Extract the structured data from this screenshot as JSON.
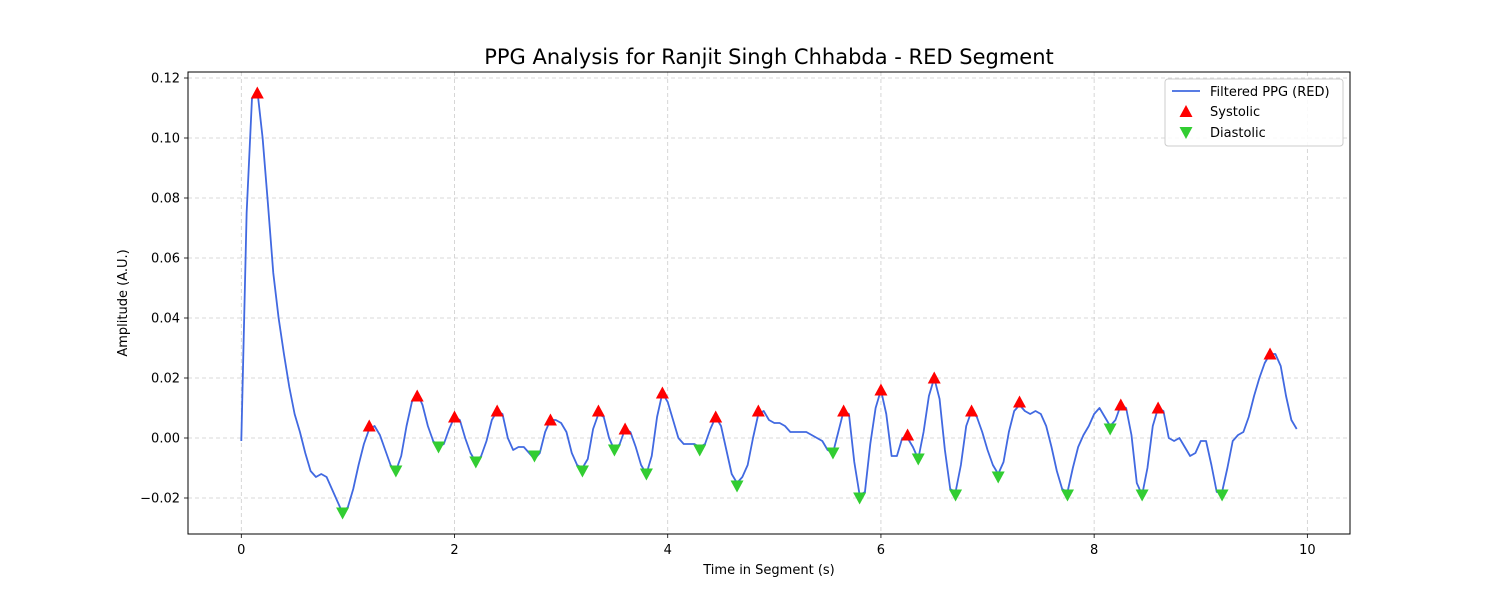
{
  "chart_data": {
    "type": "line",
    "title": "PPG Analysis for Ranjit Singh Chhabda - RED Segment",
    "xlabel": "Time in Segment (s)",
    "ylabel": "Amplitude (A.U.)",
    "xlim": [
      -0.5,
      10.4
    ],
    "ylim": [
      -0.032,
      0.122
    ],
    "xticks": [
      "0",
      "2",
      "4",
      "6",
      "8",
      "10"
    ],
    "yticks": [
      "−0.02",
      "0.00",
      "0.02",
      "0.04",
      "0.06",
      "0.08",
      "0.10",
      "0.12"
    ],
    "grid": true,
    "legend_position": "top-right",
    "series": [
      {
        "name": "Filtered PPG (RED)",
        "kind": "line",
        "color": "#4169E1",
        "points": [
          [
            0.0,
            -0.001
          ],
          [
            0.05,
            0.075
          ],
          [
            0.1,
            0.113
          ],
          [
            0.15,
            0.116
          ],
          [
            0.2,
            0.1
          ],
          [
            0.25,
            0.078
          ],
          [
            0.3,
            0.055
          ],
          [
            0.35,
            0.04
          ],
          [
            0.4,
            0.028
          ],
          [
            0.45,
            0.017
          ],
          [
            0.5,
            0.008
          ],
          [
            0.55,
            0.002
          ],
          [
            0.6,
            -0.005
          ],
          [
            0.65,
            -0.011
          ],
          [
            0.7,
            -0.013
          ],
          [
            0.75,
            -0.012
          ],
          [
            0.8,
            -0.013
          ],
          [
            0.85,
            -0.017
          ],
          [
            0.9,
            -0.021
          ],
          [
            0.95,
            -0.025
          ],
          [
            1.0,
            -0.023
          ],
          [
            1.05,
            -0.017
          ],
          [
            1.1,
            -0.009
          ],
          [
            1.15,
            -0.002
          ],
          [
            1.2,
            0.003
          ],
          [
            1.25,
            0.004
          ],
          [
            1.3,
            0.001
          ],
          [
            1.35,
            -0.004
          ],
          [
            1.4,
            -0.009
          ],
          [
            1.45,
            -0.011
          ],
          [
            1.5,
            -0.006
          ],
          [
            1.55,
            0.004
          ],
          [
            1.6,
            0.012
          ],
          [
            1.65,
            0.015
          ],
          [
            1.7,
            0.011
          ],
          [
            1.75,
            0.004
          ],
          [
            1.8,
            -0.001
          ],
          [
            1.85,
            -0.003
          ],
          [
            1.9,
            -0.002
          ],
          [
            1.95,
            0.003
          ],
          [
            2.0,
            0.007
          ],
          [
            2.05,
            0.006
          ],
          [
            2.1,
            0.0
          ],
          [
            2.15,
            -0.005
          ],
          [
            2.2,
            -0.008
          ],
          [
            2.25,
            -0.006
          ],
          [
            2.3,
            -0.001
          ],
          [
            2.35,
            0.006
          ],
          [
            2.4,
            0.009
          ],
          [
            2.45,
            0.008
          ],
          [
            2.5,
            0.0
          ],
          [
            2.55,
            -0.004
          ],
          [
            2.6,
            -0.003
          ],
          [
            2.65,
            -0.003
          ],
          [
            2.7,
            -0.005
          ],
          [
            2.75,
            -0.007
          ],
          [
            2.8,
            -0.005
          ],
          [
            2.85,
            0.002
          ],
          [
            2.9,
            0.006
          ],
          [
            2.95,
            0.006
          ],
          [
            3.0,
            0.005
          ],
          [
            3.05,
            0.002
          ],
          [
            3.1,
            -0.005
          ],
          [
            3.15,
            -0.009
          ],
          [
            3.2,
            -0.01
          ],
          [
            3.25,
            -0.007
          ],
          [
            3.3,
            0.003
          ],
          [
            3.35,
            0.008
          ],
          [
            3.4,
            0.007
          ],
          [
            3.45,
            0.0
          ],
          [
            3.5,
            -0.004
          ],
          [
            3.55,
            -0.002
          ],
          [
            3.6,
            0.003
          ],
          [
            3.65,
            0.002
          ],
          [
            3.7,
            -0.003
          ],
          [
            3.75,
            -0.009
          ],
          [
            3.8,
            -0.012
          ],
          [
            3.85,
            -0.006
          ],
          [
            3.9,
            0.007
          ],
          [
            3.95,
            0.015
          ],
          [
            4.0,
            0.012
          ],
          [
            4.05,
            0.006
          ],
          [
            4.1,
            0.0
          ],
          [
            4.15,
            -0.002
          ],
          [
            4.2,
            -0.002
          ],
          [
            4.25,
            -0.002
          ],
          [
            4.3,
            -0.003
          ],
          [
            4.35,
            -0.002
          ],
          [
            4.4,
            0.003
          ],
          [
            4.45,
            0.007
          ],
          [
            4.5,
            0.004
          ],
          [
            4.55,
            -0.004
          ],
          [
            4.6,
            -0.012
          ],
          [
            4.65,
            -0.015
          ],
          [
            4.7,
            -0.013
          ],
          [
            4.75,
            -0.009
          ],
          [
            4.8,
            0.0
          ],
          [
            4.85,
            0.008
          ],
          [
            4.9,
            0.009
          ],
          [
            4.95,
            0.006
          ],
          [
            5.0,
            0.005
          ],
          [
            5.05,
            0.005
          ],
          [
            5.1,
            0.004
          ],
          [
            5.15,
            0.002
          ],
          [
            5.2,
            0.002
          ],
          [
            5.25,
            0.002
          ],
          [
            5.3,
            0.002
          ],
          [
            5.35,
            0.001
          ],
          [
            5.4,
            0.0
          ],
          [
            5.45,
            -0.001
          ],
          [
            5.5,
            -0.004
          ],
          [
            5.55,
            -0.005
          ],
          [
            5.6,
            0.002
          ],
          [
            5.65,
            0.009
          ],
          [
            5.7,
            0.008
          ],
          [
            5.75,
            -0.008
          ],
          [
            5.8,
            -0.019
          ],
          [
            5.85,
            -0.018
          ],
          [
            5.9,
            -0.002
          ],
          [
            5.95,
            0.01
          ],
          [
            6.0,
            0.016
          ],
          [
            6.05,
            0.008
          ],
          [
            6.1,
            -0.006
          ],
          [
            6.15,
            -0.006
          ],
          [
            6.2,
            0.0
          ],
          [
            6.25,
            0.0
          ],
          [
            6.3,
            -0.003
          ],
          [
            6.35,
            -0.007
          ],
          [
            6.4,
            0.002
          ],
          [
            6.45,
            0.014
          ],
          [
            6.5,
            0.02
          ],
          [
            6.55,
            0.013
          ],
          [
            6.6,
            -0.004
          ],
          [
            6.65,
            -0.017
          ],
          [
            6.7,
            -0.018
          ],
          [
            6.75,
            -0.009
          ],
          [
            6.8,
            0.004
          ],
          [
            6.85,
            0.009
          ],
          [
            6.9,
            0.007
          ],
          [
            6.95,
            0.002
          ],
          [
            7.0,
            -0.004
          ],
          [
            7.05,
            -0.009
          ],
          [
            7.1,
            -0.012
          ],
          [
            7.15,
            -0.008
          ],
          [
            7.2,
            0.002
          ],
          [
            7.25,
            0.009
          ],
          [
            7.3,
            0.011
          ],
          [
            7.35,
            0.009
          ],
          [
            7.4,
            0.008
          ],
          [
            7.45,
            0.009
          ],
          [
            7.5,
            0.008
          ],
          [
            7.55,
            0.004
          ],
          [
            7.6,
            -0.003
          ],
          [
            7.65,
            -0.011
          ],
          [
            7.7,
            -0.017
          ],
          [
            7.75,
            -0.018
          ],
          [
            7.8,
            -0.01
          ],
          [
            7.85,
            -0.003
          ],
          [
            7.9,
            0.001
          ],
          [
            7.95,
            0.004
          ],
          [
            8.0,
            0.008
          ],
          [
            8.05,
            0.01
          ],
          [
            8.1,
            0.007
          ],
          [
            8.15,
            0.004
          ],
          [
            8.2,
            0.006
          ],
          [
            8.25,
            0.011
          ],
          [
            8.3,
            0.01
          ],
          [
            8.35,
            0.001
          ],
          [
            8.4,
            -0.015
          ],
          [
            8.45,
            -0.019
          ],
          [
            8.5,
            -0.01
          ],
          [
            8.55,
            0.004
          ],
          [
            8.6,
            0.01
          ],
          [
            8.65,
            0.009
          ],
          [
            8.7,
            0.0
          ],
          [
            8.75,
            -0.001
          ],
          [
            8.8,
            0.0
          ],
          [
            8.85,
            -0.003
          ],
          [
            8.9,
            -0.006
          ],
          [
            8.95,
            -0.005
          ],
          [
            9.0,
            -0.001
          ],
          [
            9.05,
            -0.001
          ],
          [
            9.1,
            -0.009
          ],
          [
            9.15,
            -0.018
          ],
          [
            9.2,
            -0.018
          ],
          [
            9.25,
            -0.01
          ],
          [
            9.3,
            -0.001
          ],
          [
            9.35,
            0.001
          ],
          [
            9.4,
            0.002
          ],
          [
            9.45,
            0.007
          ],
          [
            9.5,
            0.014
          ],
          [
            9.55,
            0.02
          ],
          [
            9.6,
            0.025
          ],
          [
            9.65,
            0.028
          ],
          [
            9.7,
            0.028
          ],
          [
            9.75,
            0.024
          ],
          [
            9.8,
            0.014
          ],
          [
            9.85,
            0.006
          ],
          [
            9.9,
            0.003
          ]
        ]
      },
      {
        "name": "Systolic",
        "kind": "marker-up",
        "color": "#FF0000",
        "x": [
          0.15,
          1.2,
          1.65,
          2.0,
          2.4,
          2.9,
          3.35,
          3.6,
          3.95,
          4.45,
          4.85,
          5.65,
          6.0,
          6.25,
          6.5,
          6.85,
          7.3,
          8.25,
          8.6,
          9.65
        ],
        "y": [
          0.115,
          0.004,
          0.014,
          0.007,
          0.009,
          0.006,
          0.009,
          0.003,
          0.015,
          0.007,
          0.009,
          0.009,
          0.016,
          0.001,
          0.02,
          0.009,
          0.012,
          0.011,
          0.01,
          0.028
        ]
      },
      {
        "name": "Diastolic",
        "kind": "marker-down",
        "color": "#32CD32",
        "x": [
          0.95,
          1.45,
          1.85,
          2.2,
          2.75,
          3.2,
          3.5,
          3.8,
          4.3,
          4.65,
          5.55,
          5.8,
          6.35,
          6.7,
          7.1,
          7.75,
          8.15,
          8.45,
          9.2
        ],
        "y": [
          -0.025,
          -0.011,
          -0.003,
          -0.008,
          -0.006,
          -0.011,
          -0.004,
          -0.012,
          -0.004,
          -0.016,
          -0.005,
          -0.02,
          -0.007,
          -0.019,
          -0.013,
          -0.019,
          0.003,
          -0.019,
          -0.019
        ]
      }
    ]
  }
}
